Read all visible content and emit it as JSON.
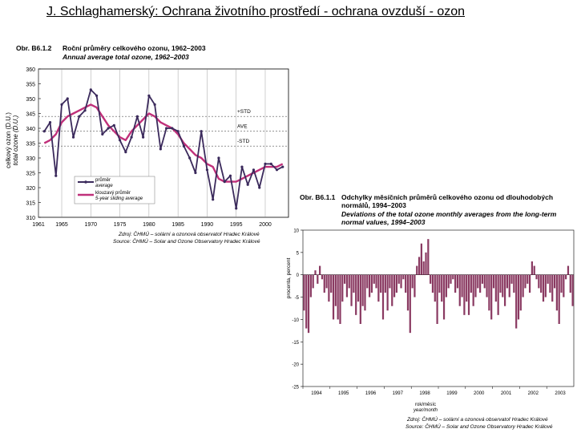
{
  "page": {
    "title": "J. Schlaghamerský: Ochrana životního prostředí - ochrana ovzduší - ozon"
  },
  "chart_data": [
    {
      "type": "line",
      "caption_id": "Obr. B6.1.2",
      "title": "Roční průměry celkového ozonu, 1962–2003",
      "subtitle": "Annual average total ozone, 1962–2003",
      "ylabel": "celkový ozon (D.U.)",
      "ylabel2": "total ozone (D.U.)",
      "xlabel": "",
      "xlim": [
        1961,
        2003
      ],
      "ylim": [
        310,
        360
      ],
      "xticks": [
        "1961",
        "1965",
        "1970",
        "1975",
        "1980",
        "1985",
        "1990",
        "1995",
        "2000"
      ],
      "yticks": [
        "360",
        "355",
        "350",
        "345",
        "340",
        "335",
        "330",
        "325",
        "320",
        "315",
        "310"
      ],
      "x": [
        1962,
        1963,
        1964,
        1965,
        1966,
        1967,
        1968,
        1969,
        1970,
        1971,
        1972,
        1973,
        1974,
        1975,
        1976,
        1977,
        1978,
        1979,
        1980,
        1981,
        1982,
        1983,
        1984,
        1985,
        1986,
        1987,
        1988,
        1989,
        1990,
        1991,
        1992,
        1993,
        1994,
        1995,
        1996,
        1997,
        1998,
        1999,
        2000,
        2001,
        2002,
        2003
      ],
      "series": [
        {
          "name": "průměr / average",
          "color": "#3b2a5c",
          "values": [
            339,
            342,
            324,
            348,
            350,
            337,
            344,
            346,
            353,
            351,
            338,
            340,
            341,
            336,
            332,
            337,
            344,
            337,
            351,
            348,
            333,
            340,
            340,
            339,
            334,
            330,
            325,
            339,
            326,
            316,
            330,
            322,
            324,
            313,
            327,
            321,
            326,
            320,
            328,
            328,
            326,
            327
          ]
        },
        {
          "name": "klouzavý průměr / 5-year sliding average",
          "color": "#c0307a",
          "values": [
            335,
            336,
            338,
            342,
            344,
            345,
            346,
            347,
            348,
            347,
            344,
            341,
            339,
            337,
            336,
            339,
            341,
            343,
            345,
            344,
            342,
            341,
            340,
            338,
            335,
            333,
            331,
            330,
            328,
            327,
            323,
            322,
            322,
            322,
            323,
            324,
            325,
            326,
            327,
            327,
            327,
            328
          ]
        }
      ],
      "annotations": [
        "+STD",
        "AVE",
        "-STD"
      ],
      "reference_lines": [
        344,
        339,
        334
      ],
      "legend": [
        "průměr",
        "average",
        "klouzavý průměr",
        "5-year sliding average"
      ],
      "legend_position": "bottom-left",
      "source_cz": "Zdroj: ČHMÚ – solární a ozonová observatoř Hradec Králové",
      "source_en": "Source: ČHMÚ – Solar and Ozone Observatory Hradec Králové"
    },
    {
      "type": "bar",
      "caption_id": "Obr. B6.1.1",
      "title_line1": "Odchylky měsíčních průměrů celkového ozonu od dlouhodobých",
      "title_line2": "normálů, 1994–2003",
      "subtitle_line1": "Deviations of the total ozone monthly averages from the long-term",
      "subtitle_line2": "normal values, 1994–2003",
      "ylabel": "procenta, percent",
      "xlabel_line1": "rok/měsíc",
      "xlabel_line2": "year/month",
      "ylim": [
        -25,
        10
      ],
      "yticks": [
        "10",
        "5",
        "0",
        "-5",
        "-10",
        "-15",
        "-20",
        "-25"
      ],
      "xticks": [
        "1994",
        "1995",
        "1996",
        "1997",
        "1998",
        "1999",
        "2000",
        "2001",
        "2002",
        "2003"
      ],
      "color": "#8a3a62",
      "values": [
        -8,
        -12,
        -13,
        -5,
        -3,
        1,
        -2,
        2,
        -1,
        -4,
        -3,
        -6,
        -4,
        -10,
        -7,
        -10,
        -11,
        -6,
        -2,
        -5,
        -3,
        -7,
        -4,
        -9,
        -6,
        -11,
        -7,
        -8,
        -3,
        -5,
        -4,
        -2,
        -3,
        -6,
        -4,
        -10,
        -4,
        -8,
        -3,
        -7,
        -5,
        -4,
        -2,
        -3,
        -1,
        -4,
        -8,
        -13,
        -3,
        -5,
        2,
        4,
        7,
        3,
        5,
        8,
        -2,
        -4,
        -6,
        -11,
        -4,
        -6,
        -10,
        -5,
        -3,
        -2,
        -1,
        -4,
        -3,
        -7,
        -5,
        -9,
        -6,
        -9,
        -4,
        -7,
        -5,
        -3,
        -4,
        -2,
        -3,
        -5,
        -8,
        -10,
        -3,
        -6,
        -9,
        -4,
        -5,
        -7,
        -3,
        -5,
        -2,
        -4,
        -12,
        -10,
        -8,
        -5,
        -3,
        -2,
        -4,
        3,
        2,
        -1,
        -3,
        -4,
        -6,
        -5,
        -2,
        -4,
        -6,
        -3,
        -8,
        -11,
        -4,
        -5,
        -1,
        2,
        -4,
        -7
      ],
      "source_cz": "Zdroj: ČHMÚ – solární a ozonová observatoř Hradec Králové",
      "source_en": "Source: ČHMÚ – Solar and Ozone Observatory Hradec Králové"
    }
  ]
}
